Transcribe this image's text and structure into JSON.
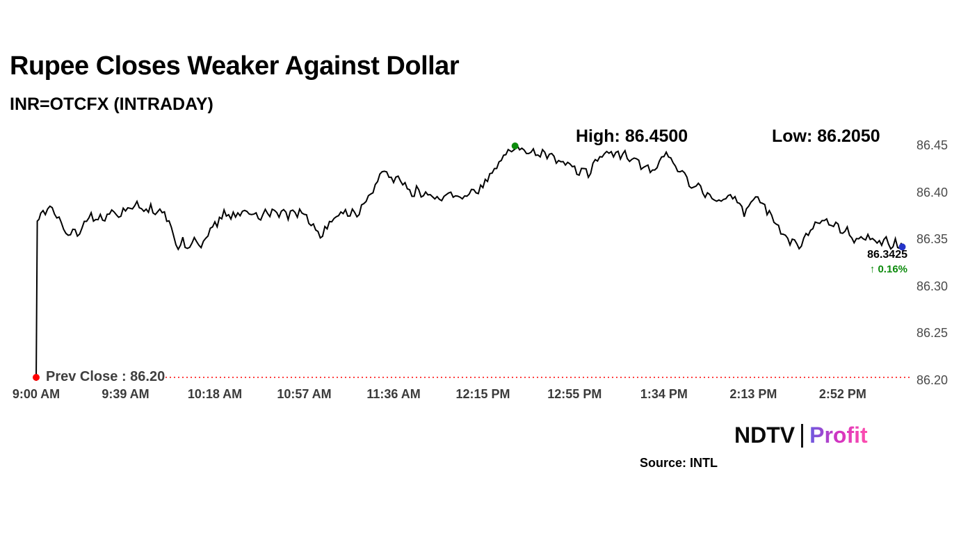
{
  "header": {
    "title": "Rupee Closes Weaker Against Dollar",
    "subtitle": "INR=OTCFX (INTRADAY)"
  },
  "annotations": {
    "high_label": "High: 86.4500",
    "low_label": "Low: 86.2050",
    "last_price": "86.3425",
    "change_pct": "↑ 0.16%",
    "prev_close_label": "Prev Close : 86.20"
  },
  "footer": {
    "brand_ndtv": "NDTV",
    "brand_profit": "Profit",
    "source": "Source: INTL"
  },
  "colors": {
    "line": "#000000",
    "prev_close": "#ff0000",
    "up_green": "#0b8a0b",
    "open_dot": "#ff0000",
    "high_dot": "#0d8c0d",
    "last_dot": "#2433c8"
  },
  "chart_data": {
    "type": "line",
    "title": "INR=OTCFX (INTRADAY)",
    "x_unit": "minutes since 9:00 AM",
    "high": 86.45,
    "low": 86.205,
    "prev_close": 86.2,
    "last": 86.3425,
    "change_pct": 0.16,
    "ylim": [
      86.2,
      86.47
    ],
    "legend": "none",
    "grid": "off",
    "y_ticks": [
      {
        "v": 86.45,
        "label": "86.45"
      },
      {
        "v": 86.4,
        "label": "86.40"
      },
      {
        "v": 86.35,
        "label": "86.35"
      },
      {
        "v": 86.3,
        "label": "86.30"
      },
      {
        "v": 86.25,
        "label": "86.25"
      },
      {
        "v": 86.2,
        "label": "86.20"
      }
    ],
    "x_ticks": [
      {
        "t": 0,
        "label": "9:00 AM"
      },
      {
        "t": 39,
        "label": "9:39 AM"
      },
      {
        "t": 78,
        "label": "10:18 AM"
      },
      {
        "t": 117,
        "label": "10:57 AM"
      },
      {
        "t": 156,
        "label": "11:36 AM"
      },
      {
        "t": 195,
        "label": "12:15 PM"
      },
      {
        "t": 235,
        "label": "12:55 PM"
      },
      {
        "t": 274,
        "label": "1:34 PM"
      },
      {
        "t": 313,
        "label": "2:13 PM"
      },
      {
        "t": 352,
        "label": "2:52 PM"
      }
    ],
    "markers": [
      {
        "name": "open-marker",
        "t": 0,
        "v": 86.2,
        "color": "#ff0000"
      },
      {
        "name": "high-marker",
        "t": 209,
        "v": 86.45,
        "color": "#0d8c0d"
      },
      {
        "name": "last-marker",
        "t": 378,
        "v": 86.3425,
        "color": "#2433c8"
      }
    ],
    "series": [
      {
        "name": "INR=OTCFX",
        "points": [
          [
            0,
            86.2
          ],
          [
            0.5,
            86.37
          ],
          [
            2,
            86.38
          ],
          [
            4,
            86.374
          ],
          [
            6,
            86.383
          ],
          [
            8,
            86.378
          ],
          [
            10,
            86.372
          ],
          [
            12,
            86.362
          ],
          [
            14,
            86.355
          ],
          [
            16,
            86.362
          ],
          [
            18,
            86.356
          ],
          [
            20,
            86.362
          ],
          [
            22,
            86.37
          ],
          [
            24,
            86.375
          ],
          [
            26,
            86.37
          ],
          [
            28,
            86.377
          ],
          [
            30,
            86.372
          ],
          [
            32,
            86.377
          ],
          [
            34,
            86.38
          ],
          [
            36,
            86.377
          ],
          [
            38,
            86.381
          ],
          [
            40,
            86.388
          ],
          [
            42,
            86.384
          ],
          [
            44,
            86.391
          ],
          [
            46,
            86.386
          ],
          [
            48,
            86.381
          ],
          [
            50,
            86.386
          ],
          [
            52,
            86.379
          ],
          [
            54,
            86.383
          ],
          [
            56,
            86.376
          ],
          [
            58,
            86.37
          ],
          [
            60,
            86.352
          ],
          [
            62,
            86.344
          ],
          [
            64,
            86.349
          ],
          [
            66,
            86.341
          ],
          [
            68,
            86.346
          ],
          [
            70,
            86.351
          ],
          [
            72,
            86.346
          ],
          [
            74,
            86.352
          ],
          [
            76,
            86.358
          ],
          [
            78,
            86.365
          ],
          [
            80,
            86.372
          ],
          [
            82,
            86.378
          ],
          [
            84,
            86.374
          ],
          [
            86,
            86.379
          ],
          [
            88,
            86.376
          ],
          [
            90,
            86.381
          ],
          [
            92,
            86.377
          ],
          [
            94,
            86.374
          ],
          [
            96,
            86.379
          ],
          [
            98,
            86.375
          ],
          [
            100,
            86.379
          ],
          [
            102,
            86.377
          ],
          [
            104,
            86.381
          ],
          [
            106,
            86.377
          ],
          [
            108,
            86.38
          ],
          [
            110,
            86.376
          ],
          [
            112,
            86.379
          ],
          [
            114,
            86.377
          ],
          [
            116,
            86.38
          ],
          [
            118,
            86.375
          ],
          [
            120,
            86.369
          ],
          [
            122,
            86.361
          ],
          [
            124,
            86.355
          ],
          [
            126,
            86.36
          ],
          [
            128,
            86.367
          ],
          [
            130,
            86.372
          ],
          [
            132,
            86.377
          ],
          [
            134,
            86.38
          ],
          [
            136,
            86.376
          ],
          [
            138,
            86.38
          ],
          [
            140,
            86.377
          ],
          [
            142,
            86.384
          ],
          [
            144,
            86.391
          ],
          [
            146,
            86.399
          ],
          [
            148,
            86.409
          ],
          [
            150,
            86.417
          ],
          [
            152,
            86.424
          ],
          [
            154,
            86.419
          ],
          [
            156,
            86.412
          ],
          [
            158,
            86.418
          ],
          [
            160,
            86.41
          ],
          [
            162,
            86.404
          ],
          [
            164,
            86.398
          ],
          [
            166,
            86.403
          ],
          [
            168,
            86.397
          ],
          [
            170,
            86.4
          ],
          [
            172,
            86.394
          ],
          [
            174,
            86.398
          ],
          [
            176,
            86.392
          ],
          [
            178,
            86.396
          ],
          [
            180,
            86.4
          ],
          [
            182,
            86.396
          ],
          [
            184,
            86.4
          ],
          [
            186,
            86.395
          ],
          [
            188,
            86.398
          ],
          [
            190,
            86.402
          ],
          [
            192,
            86.398
          ],
          [
            194,
            86.404
          ],
          [
            196,
            86.411
          ],
          [
            198,
            86.417
          ],
          [
            200,
            86.424
          ],
          [
            202,
            86.431
          ],
          [
            204,
            86.439
          ],
          [
            206,
            86.445
          ],
          [
            209,
            86.45
          ],
          [
            211,
            86.443
          ],
          [
            213,
            86.447
          ],
          [
            215,
            86.44
          ],
          [
            217,
            86.444
          ],
          [
            219,
            86.438
          ],
          [
            221,
            86.442
          ],
          [
            223,
            86.436
          ],
          [
            225,
            86.44
          ],
          [
            227,
            86.432
          ],
          [
            229,
            86.436
          ],
          [
            231,
            86.428
          ],
          [
            233,
            86.432
          ],
          [
            235,
            86.425
          ],
          [
            237,
            86.42
          ],
          [
            239,
            86.426
          ],
          [
            241,
            86.42
          ],
          [
            243,
            86.428
          ],
          [
            245,
            86.435
          ],
          [
            247,
            86.44
          ],
          [
            249,
            86.445
          ],
          [
            251,
            86.44
          ],
          [
            253,
            86.445
          ],
          [
            255,
            86.438
          ],
          [
            257,
            86.442
          ],
          [
            259,
            86.436
          ],
          [
            261,
            86.44
          ],
          [
            263,
            86.432
          ],
          [
            265,
            86.425
          ],
          [
            267,
            86.43
          ],
          [
            269,
            86.422
          ],
          [
            271,
            86.428
          ],
          [
            273,
            86.435
          ],
          [
            275,
            86.44
          ],
          [
            277,
            86.436
          ],
          [
            279,
            86.43
          ],
          [
            281,
            86.424
          ],
          [
            283,
            86.417
          ],
          [
            285,
            86.411
          ],
          [
            287,
            86.404
          ],
          [
            289,
            86.409
          ],
          [
            291,
            86.402
          ],
          [
            293,
            86.397
          ],
          [
            295,
            86.391
          ],
          [
            297,
            86.395
          ],
          [
            299,
            86.389
          ],
          [
            301,
            86.394
          ],
          [
            303,
            86.399
          ],
          [
            305,
            86.392
          ],
          [
            307,
            86.385
          ],
          [
            309,
            86.379
          ],
          [
            311,
            86.384
          ],
          [
            313,
            86.39
          ],
          [
            315,
            86.395
          ],
          [
            317,
            86.389
          ],
          [
            319,
            86.381
          ],
          [
            321,
            86.374
          ],
          [
            323,
            86.367
          ],
          [
            325,
            86.359
          ],
          [
            327,
            86.351
          ],
          [
            329,
            86.344
          ],
          [
            331,
            86.349
          ],
          [
            333,
            86.343
          ],
          [
            335,
            86.349
          ],
          [
            337,
            86.356
          ],
          [
            339,
            86.362
          ],
          [
            341,
            86.369
          ],
          [
            343,
            86.373
          ],
          [
            345,
            86.369
          ],
          [
            347,
            86.363
          ],
          [
            349,
            86.367
          ],
          [
            351,
            86.359
          ],
          [
            353,
            86.363
          ],
          [
            355,
            86.356
          ],
          [
            357,
            86.351
          ],
          [
            359,
            86.355
          ],
          [
            361,
            86.349
          ],
          [
            363,
            86.353
          ],
          [
            365,
            86.347
          ],
          [
            367,
            86.351
          ],
          [
            369,
            86.345
          ],
          [
            371,
            86.349
          ],
          [
            373,
            86.344
          ],
          [
            375,
            86.347
          ],
          [
            377,
            86.343
          ],
          [
            378,
            86.3425
          ]
        ]
      }
    ]
  }
}
